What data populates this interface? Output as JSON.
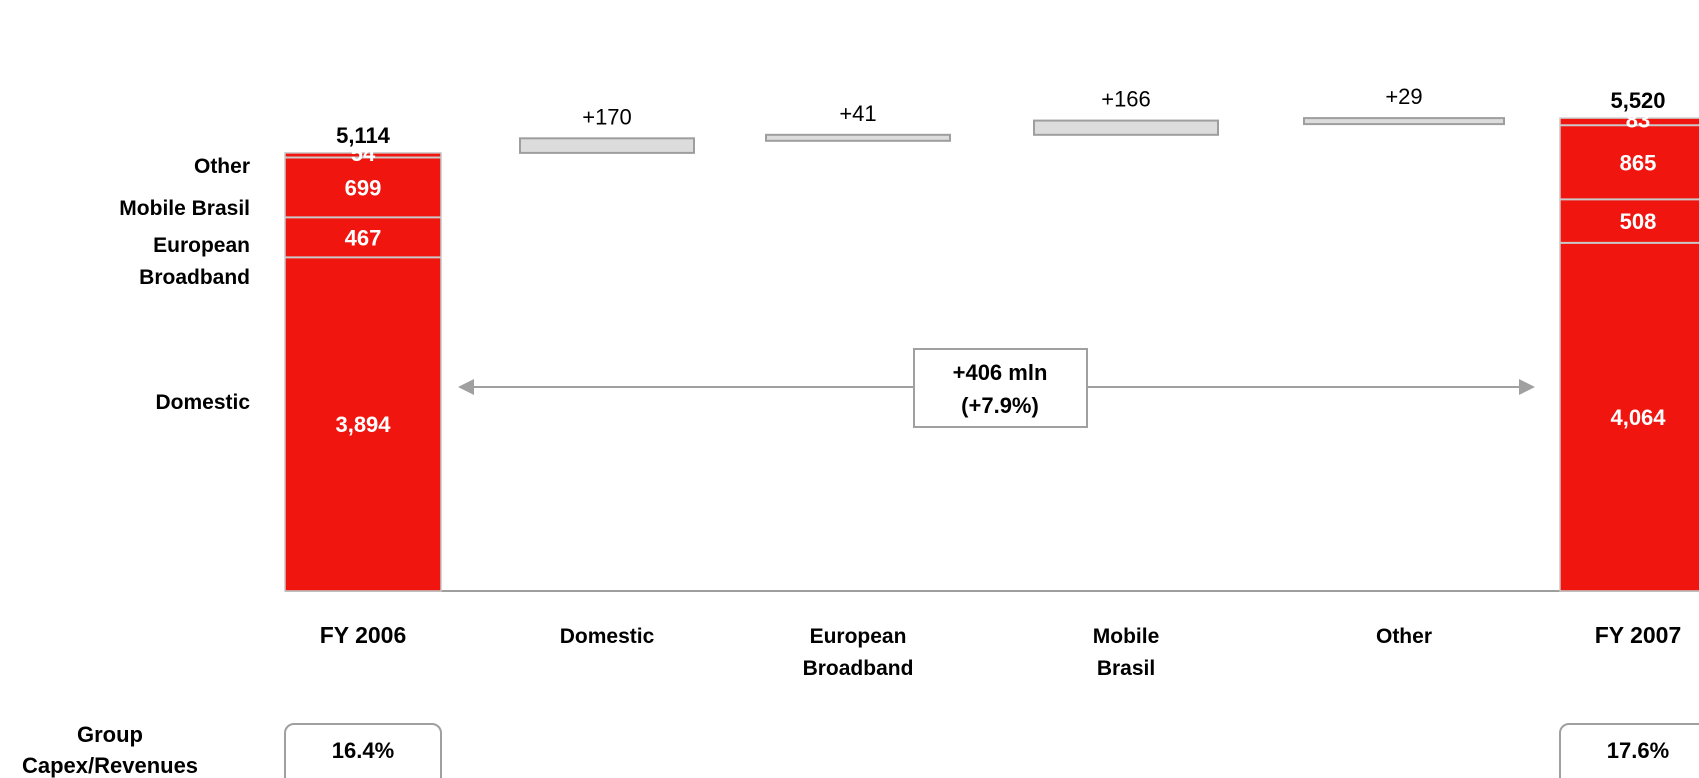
{
  "chart_data": {
    "type": "bar",
    "subtype": "waterfall",
    "unit": "mln",
    "categories": [
      "FY 2006",
      "Domestic",
      "European Broadband",
      "Mobile Brasil",
      "Other",
      "FY 2007"
    ],
    "category_lines": [
      [
        "FY 2006"
      ],
      [
        "Domestic"
      ],
      [
        "European",
        "Broadband"
      ],
      [
        "Mobile",
        "Brasil"
      ],
      [
        "Other"
      ],
      [
        "FY 2007"
      ]
    ],
    "segments": [
      "Domestic",
      "European Broadband",
      "Mobile Brasil",
      "Other"
    ],
    "legend_labels": [
      [
        "Domestic"
      ],
      [
        "European",
        "Broadband"
      ],
      [
        "Mobile Brasil"
      ],
      [
        "Other"
      ]
    ],
    "start": {
      "label": "FY 2006",
      "total": 5114,
      "total_label": "5,114",
      "values": [
        3894,
        467,
        699,
        54
      ],
      "value_labels": [
        "3,894",
        "467",
        "699",
        "54"
      ]
    },
    "end": {
      "label": "FY 2007",
      "total": 5520,
      "total_label": "5,520",
      "values": [
        4064,
        508,
        865,
        83
      ],
      "value_labels": [
        "4,064",
        "508",
        "865",
        "83"
      ]
    },
    "deltas": [
      {
        "category": "Domestic",
        "value": 170,
        "label": "+170"
      },
      {
        "category": "European Broadband",
        "value": 41,
        "label": "+41"
      },
      {
        "category": "Mobile Brasil",
        "value": 166,
        "label": "+166"
      },
      {
        "category": "Other",
        "value": 29,
        "label": "+29"
      }
    ],
    "annotation": {
      "line1": "+406 mln",
      "line2": "(+7.9%)"
    },
    "ratio_row": {
      "label_lines": [
        "Group",
        "Capex/Revenues"
      ],
      "values": [
        "16.4%",
        "17.6%"
      ]
    },
    "colors": {
      "total_bar": "#F0150F",
      "delta_bar": "#DCDCDC",
      "delta_border": "#9E9E9E",
      "divider": "#C9C9C9"
    }
  }
}
